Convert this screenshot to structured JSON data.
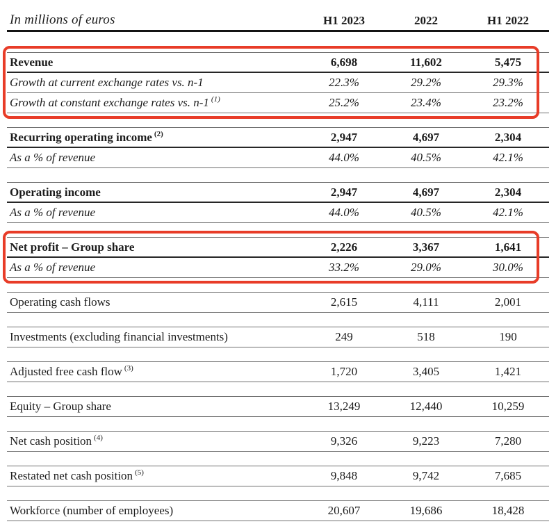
{
  "table": {
    "unit_label": "In millions of euros",
    "columns": [
      "H1 2023",
      "2022",
      "H1 2022"
    ],
    "highlight_color": "#e83c28",
    "sections": [
      {
        "highlighted": true,
        "rows": [
          {
            "label": "Revenue",
            "style": "bold",
            "values": [
              "6,698",
              "11,602",
              "5,475"
            ]
          },
          {
            "label": "Growth at current exchange rates vs. n-1",
            "style": "italic",
            "values": [
              "22.3%",
              "29.2%",
              "29.3%"
            ]
          },
          {
            "label": "Growth at constant exchange rates vs. n-1",
            "footnote": "(1)",
            "style": "italic",
            "values": [
              "25.2%",
              "23.4%",
              "23.2%"
            ]
          }
        ]
      },
      {
        "highlighted": false,
        "rows": [
          {
            "label": "Recurring operating income",
            "footnote": "(2)",
            "style": "bold",
            "values": [
              "2,947",
              "4,697",
              "2,304"
            ]
          },
          {
            "label": "As a % of revenue",
            "style": "italic",
            "values": [
              "44.0%",
              "40.5%",
              "42.1%"
            ]
          }
        ]
      },
      {
        "highlighted": false,
        "rows": [
          {
            "label": "Operating income",
            "style": "bold",
            "values": [
              "2,947",
              "4,697",
              "2,304"
            ]
          },
          {
            "label": "As a % of revenue",
            "style": "italic",
            "values": [
              "44.0%",
              "40.5%",
              "42.1%"
            ]
          }
        ]
      },
      {
        "highlighted": true,
        "rows": [
          {
            "label": "Net profit – Group share",
            "style": "bold",
            "values": [
              "2,226",
              "3,367",
              "1,641"
            ]
          },
          {
            "label": "As a % of revenue",
            "style": "italic",
            "values": [
              "33.2%",
              "29.0%",
              "30.0%"
            ]
          }
        ]
      },
      {
        "highlighted": false,
        "rows": [
          {
            "label": "Operating cash flows",
            "style": "plain",
            "values": [
              "2,615",
              "4,111",
              "2,001"
            ]
          }
        ]
      },
      {
        "highlighted": false,
        "rows": [
          {
            "label": "Investments (excluding financial investments)",
            "style": "plain",
            "values": [
              "249",
              "518",
              "190"
            ]
          }
        ]
      },
      {
        "highlighted": false,
        "rows": [
          {
            "label": "Adjusted free cash flow",
            "footnote": "(3)",
            "style": "plain",
            "values": [
              "1,720",
              "3,405",
              "1,421"
            ]
          }
        ]
      },
      {
        "highlighted": false,
        "rows": [
          {
            "label": "Equity – Group share",
            "style": "plain",
            "values": [
              "13,249",
              "12,440",
              "10,259"
            ]
          }
        ]
      },
      {
        "highlighted": false,
        "rows": [
          {
            "label": "Net cash position",
            "footnote": "(4)",
            "style": "plain",
            "values": [
              "9,326",
              "9,223",
              "7,280"
            ]
          }
        ]
      },
      {
        "highlighted": false,
        "rows": [
          {
            "label": "Restated net cash position",
            "footnote": "(5)",
            "style": "plain",
            "values": [
              "9,848",
              "9,742",
              "7,685"
            ]
          }
        ]
      },
      {
        "highlighted": false,
        "rows": [
          {
            "label": "Workforce (number of employees)",
            "style": "plain",
            "values": [
              "20,607",
              "19,686",
              "18,428"
            ]
          }
        ]
      }
    ]
  }
}
